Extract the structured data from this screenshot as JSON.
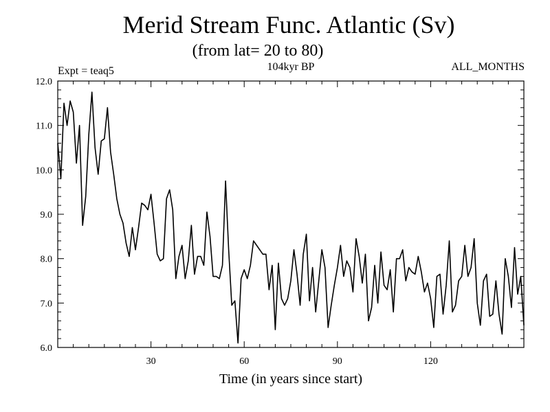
{
  "chart_data": {
    "type": "line",
    "title": "Merid Stream Func. Atlantic (Sv)",
    "subtitle": "(from lat= 20 to 80)",
    "annotations": {
      "left": "Expt = teaq5",
      "center": "104kyr BP",
      "right": "ALL_MONTHS"
    },
    "xlabel": "Time (in years since start)",
    "ylabel": "",
    "xlim": [
      0,
      150
    ],
    "ylim": [
      6.0,
      12.0
    ],
    "x_ticks": [
      30,
      60,
      90,
      120
    ],
    "x_tick_labels": [
      "30",
      "60",
      "90",
      "120"
    ],
    "y_ticks": [
      6.0,
      7.0,
      8.0,
      9.0,
      10.0,
      11.0,
      12.0
    ],
    "y_tick_labels": [
      "6.0",
      "7.0",
      "8.0",
      "9.0",
      "10.0",
      "11.0",
      "12.0"
    ],
    "grid": false,
    "series": [
      {
        "name": "Merid Stream Func. Atlantic",
        "x": [
          0,
          1,
          2,
          3,
          4,
          5,
          6,
          7,
          8,
          9,
          10,
          11,
          12,
          13,
          14,
          15,
          16,
          17,
          18,
          19,
          20,
          21,
          22,
          23,
          24,
          25,
          26,
          27,
          28,
          29,
          30,
          31,
          32,
          33,
          34,
          35,
          36,
          37,
          38,
          39,
          40,
          41,
          42,
          43,
          44,
          45,
          46,
          47,
          48,
          49,
          50,
          51,
          52,
          53,
          54,
          55,
          56,
          57,
          58,
          59,
          60,
          61,
          62,
          63,
          64,
          65,
          66,
          67,
          68,
          69,
          70,
          71,
          72,
          73,
          74,
          75,
          76,
          77,
          78,
          79,
          80,
          81,
          82,
          83,
          84,
          85,
          86,
          87,
          88,
          89,
          90,
          91,
          92,
          93,
          94,
          95,
          96,
          97,
          98,
          99,
          100,
          101,
          102,
          103,
          104,
          105,
          106,
          107,
          108,
          109,
          110,
          111,
          112,
          113,
          114,
          115,
          116,
          117,
          118,
          119,
          120,
          121,
          122,
          123,
          124,
          125,
          126,
          127,
          128,
          129,
          130,
          131,
          132,
          133,
          134,
          135,
          136,
          137,
          138,
          139,
          140,
          141,
          142,
          143,
          144,
          145,
          146,
          147,
          148,
          149,
          150
        ],
        "values": [
          10.6,
          9.8,
          11.5,
          11.0,
          11.55,
          11.3,
          10.15,
          11.0,
          8.75,
          9.4,
          10.8,
          11.75,
          10.5,
          9.9,
          10.65,
          10.7,
          11.4,
          10.4,
          9.9,
          9.35,
          9.0,
          8.8,
          8.35,
          8.05,
          8.7,
          8.2,
          8.7,
          9.25,
          9.2,
          9.1,
          9.45,
          8.8,
          8.1,
          7.95,
          8.0,
          9.35,
          9.55,
          9.1,
          7.55,
          8.05,
          8.3,
          7.55,
          7.95,
          8.75,
          7.65,
          8.05,
          8.05,
          7.85,
          9.05,
          8.5,
          7.6,
          7.6,
          7.55,
          7.85,
          9.75,
          8.2,
          6.95,
          7.05,
          6.1,
          7.55,
          7.75,
          7.55,
          7.85,
          8.4,
          8.3,
          8.2,
          8.1,
          8.1,
          7.3,
          7.85,
          6.4,
          7.9,
          7.1,
          6.95,
          7.1,
          7.5,
          8.2,
          7.65,
          6.95,
          8.1,
          8.55,
          7.05,
          7.8,
          6.8,
          7.5,
          8.2,
          7.8,
          6.45,
          6.95,
          7.4,
          7.8,
          8.3,
          7.6,
          7.95,
          7.8,
          7.25,
          8.45,
          8.05,
          7.45,
          8.1,
          6.6,
          6.9,
          7.85,
          7.0,
          8.15,
          7.4,
          7.3,
          7.75,
          6.8,
          8.0,
          8.0,
          8.2,
          7.5,
          7.8,
          7.7,
          7.65,
          8.05,
          7.7,
          7.25,
          7.45,
          7.1,
          6.45,
          7.6,
          7.65,
          6.75,
          7.4,
          8.4,
          6.8,
          6.95,
          7.5,
          7.6,
          8.3,
          7.6,
          7.8,
          8.45,
          7.0,
          6.5,
          7.5,
          7.65,
          6.7,
          6.75,
          7.5,
          6.75,
          6.3,
          8.0,
          7.6,
          6.9,
          8.25,
          7.2,
          7.6,
          6.5
        ]
      }
    ]
  }
}
